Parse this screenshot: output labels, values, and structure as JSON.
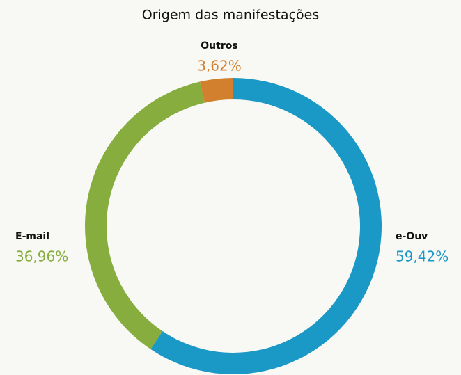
{
  "chart_data": {
    "type": "donut",
    "title": "Origem das manifestações",
    "categories": [
      "e-Ouv",
      "E-mail",
      "Outros"
    ],
    "values": [
      59.42,
      36.96,
      3.62
    ],
    "value_labels": [
      "59,42%",
      "36,96%",
      "3,62%"
    ],
    "colors": [
      "#1a98c6",
      "#87ad3f",
      "#d27f2e"
    ]
  }
}
